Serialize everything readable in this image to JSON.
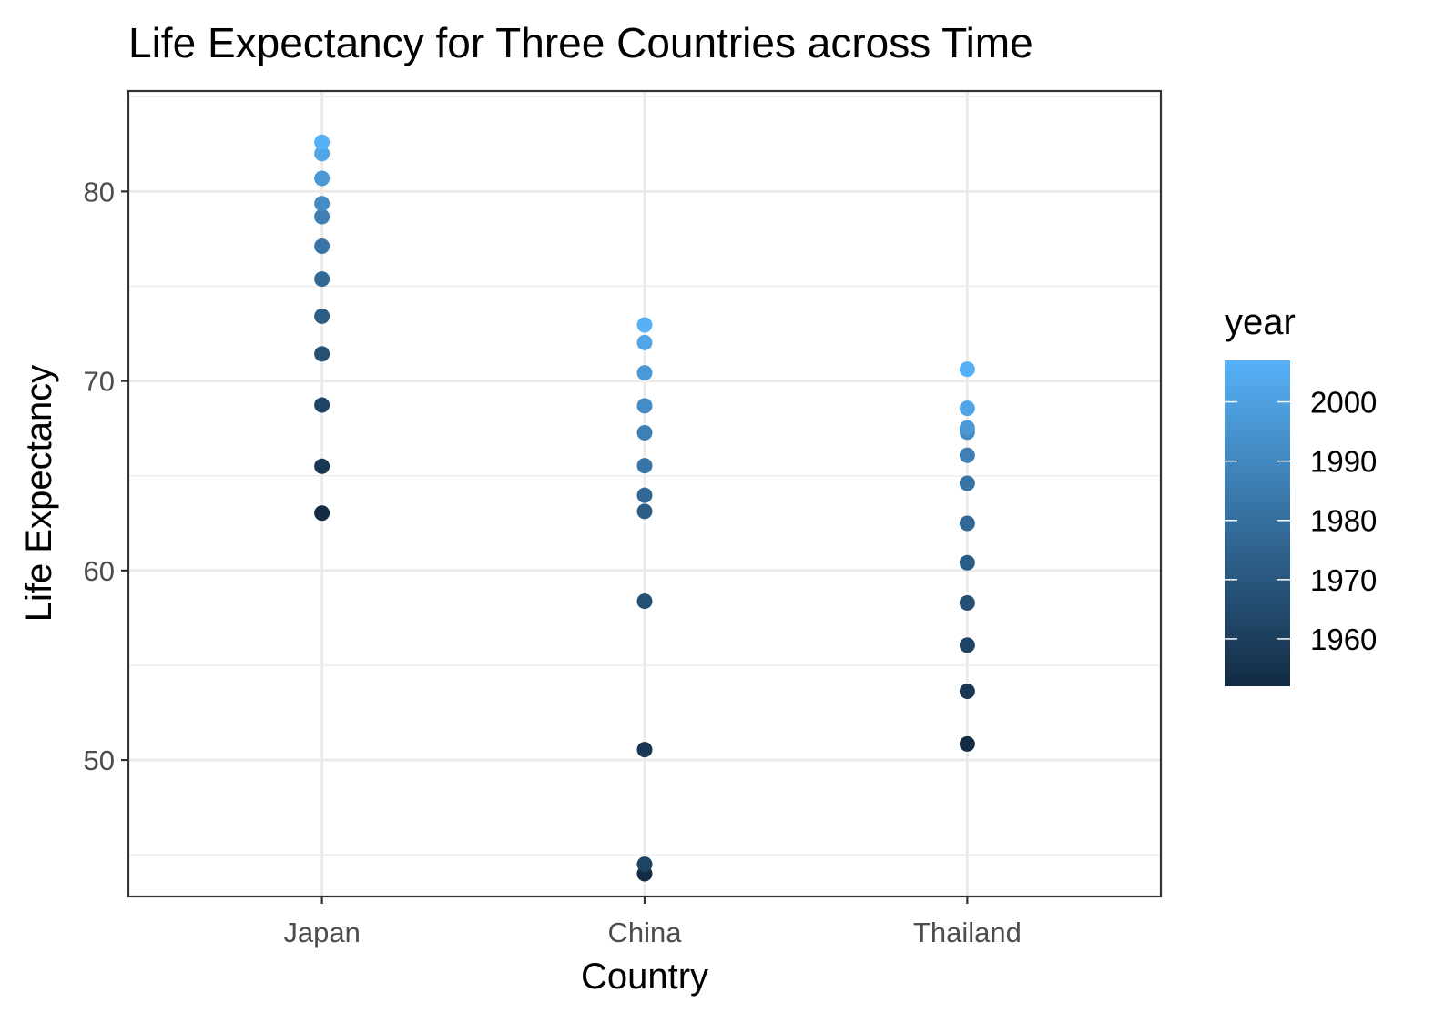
{
  "chart_data": {
    "type": "scatter",
    "title": "Life Expectancy for Three Countries across Time",
    "xlabel": "Country",
    "ylabel": "Life Expectancy",
    "categories": [
      "Japan",
      "China",
      "Thailand"
    ],
    "ylim": [
      42.8,
      85.3
    ],
    "yticks": [
      50,
      60,
      70,
      80
    ],
    "grid": true,
    "legend": {
      "title": "year",
      "placement": "right",
      "type": "colorbar",
      "range": [
        1952,
        2007
      ],
      "ticks": [
        1960,
        1970,
        1980,
        1990,
        2000
      ],
      "colors": {
        "low": "#132b43",
        "high": "#56b1f7"
      }
    },
    "points": [
      {
        "country": "Japan",
        "year": 1952,
        "value": 63.03
      },
      {
        "country": "Japan",
        "year": 1957,
        "value": 65.5
      },
      {
        "country": "Japan",
        "year": 1962,
        "value": 68.73
      },
      {
        "country": "Japan",
        "year": 1967,
        "value": 71.43
      },
      {
        "country": "Japan",
        "year": 1972,
        "value": 73.42
      },
      {
        "country": "Japan",
        "year": 1977,
        "value": 75.38
      },
      {
        "country": "Japan",
        "year": 1982,
        "value": 77.11
      },
      {
        "country": "Japan",
        "year": 1987,
        "value": 78.67
      },
      {
        "country": "Japan",
        "year": 1992,
        "value": 79.36
      },
      {
        "country": "Japan",
        "year": 1997,
        "value": 80.69
      },
      {
        "country": "Japan",
        "year": 2002,
        "value": 82.0
      },
      {
        "country": "Japan",
        "year": 2007,
        "value": 82.6
      },
      {
        "country": "China",
        "year": 1952,
        "value": 44.0
      },
      {
        "country": "China",
        "year": 1957,
        "value": 50.55
      },
      {
        "country": "China",
        "year": 1962,
        "value": 44.5
      },
      {
        "country": "China",
        "year": 1967,
        "value": 58.38
      },
      {
        "country": "China",
        "year": 1972,
        "value": 63.12
      },
      {
        "country": "China",
        "year": 1977,
        "value": 63.97
      },
      {
        "country": "China",
        "year": 1982,
        "value": 65.53
      },
      {
        "country": "China",
        "year": 1987,
        "value": 67.27
      },
      {
        "country": "China",
        "year": 1992,
        "value": 68.69
      },
      {
        "country": "China",
        "year": 1997,
        "value": 70.43
      },
      {
        "country": "China",
        "year": 2002,
        "value": 72.03
      },
      {
        "country": "China",
        "year": 2007,
        "value": 72.96
      },
      {
        "country": "Thailand",
        "year": 1952,
        "value": 50.85
      },
      {
        "country": "Thailand",
        "year": 1957,
        "value": 53.63
      },
      {
        "country": "Thailand",
        "year": 1962,
        "value": 56.06
      },
      {
        "country": "Thailand",
        "year": 1967,
        "value": 58.29
      },
      {
        "country": "Thailand",
        "year": 1972,
        "value": 60.41
      },
      {
        "country": "Thailand",
        "year": 1977,
        "value": 62.49
      },
      {
        "country": "Thailand",
        "year": 1982,
        "value": 64.6
      },
      {
        "country": "Thailand",
        "year": 1987,
        "value": 66.08
      },
      {
        "country": "Thailand",
        "year": 1992,
        "value": 67.3
      },
      {
        "country": "Thailand",
        "year": 1997,
        "value": 67.52
      },
      {
        "country": "Thailand",
        "year": 2002,
        "value": 68.56
      },
      {
        "country": "Thailand",
        "year": 2007,
        "value": 70.62
      }
    ]
  }
}
